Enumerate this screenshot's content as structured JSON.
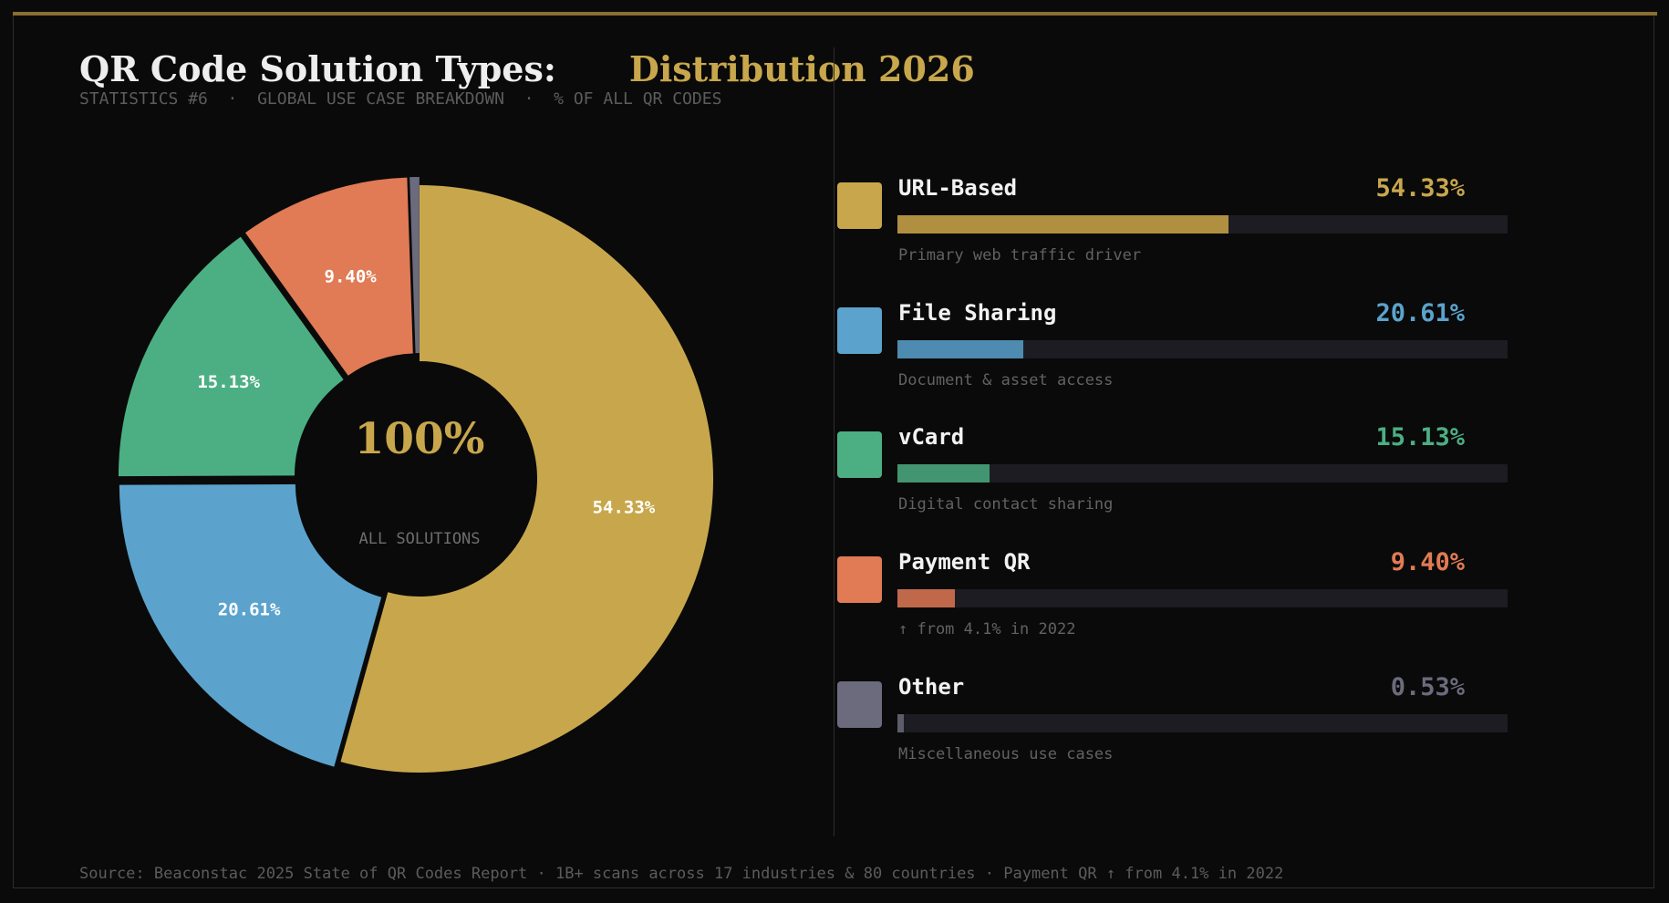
{
  "header": {
    "title_main": "QR Code Solution Types:",
    "title_accent": "Distribution 2026",
    "subtitle": "STATISTICS #6  ·  GLOBAL USE CASE BREAKDOWN  ·  % OF ALL QR CODES"
  },
  "donut_center": {
    "value": "100%",
    "label": "ALL SOLUTIONS"
  },
  "colors": {
    "accent": "#c8a74c",
    "background": "#0a0a0a"
  },
  "chart_data": {
    "type": "pie",
    "donut": true,
    "title": "QR Code Solution Types: Distribution 2026",
    "categories": [
      "URL-Based",
      "File Sharing",
      "vCard",
      "Payment QR",
      "Other"
    ],
    "values": [
      54.33,
      20.61,
      15.13,
      9.4,
      0.53
    ],
    "labels": [
      "54.33%",
      "20.61%",
      "15.13%",
      "9.40%",
      ""
    ],
    "colors": [
      "#c8a74c",
      "#5ba3cc",
      "#4caf83",
      "#e07b55",
      "#6b6b7d"
    ],
    "legend_placement": "right"
  },
  "legend": [
    {
      "name": "URL-Based",
      "pct": "54.33%",
      "value": 54.33,
      "desc": "Primary web traffic driver",
      "color": "#c8a74c",
      "bar_color": "#b09040"
    },
    {
      "name": "File Sharing",
      "pct": "20.61%",
      "value": 20.61,
      "desc": "Document & asset access",
      "color": "#5ba3cc",
      "bar_color": "#4e8bb0"
    },
    {
      "name": "vCard",
      "pct": "15.13%",
      "value": 15.13,
      "desc": "Digital contact sharing",
      "color": "#4caf83",
      "bar_color": "#429570"
    },
    {
      "name": "Payment QR",
      "pct": "9.40%",
      "value": 9.4,
      "desc": "↑ from 4.1% in 2022",
      "color": "#e07b55",
      "bar_color": "#c0694a"
    },
    {
      "name": "Other",
      "pct": "0.53%",
      "value": 0.53,
      "desc": "Miscellaneous use cases",
      "color": "#6b6b7d",
      "bar_color": "#5c5c6b"
    }
  ],
  "footer": {
    "source": "Source: Beaconstac 2025 State of QR Codes Report · 1B+ scans across 17 industries & 80 countries · Payment QR ↑ from 4.1% in 2022"
  }
}
